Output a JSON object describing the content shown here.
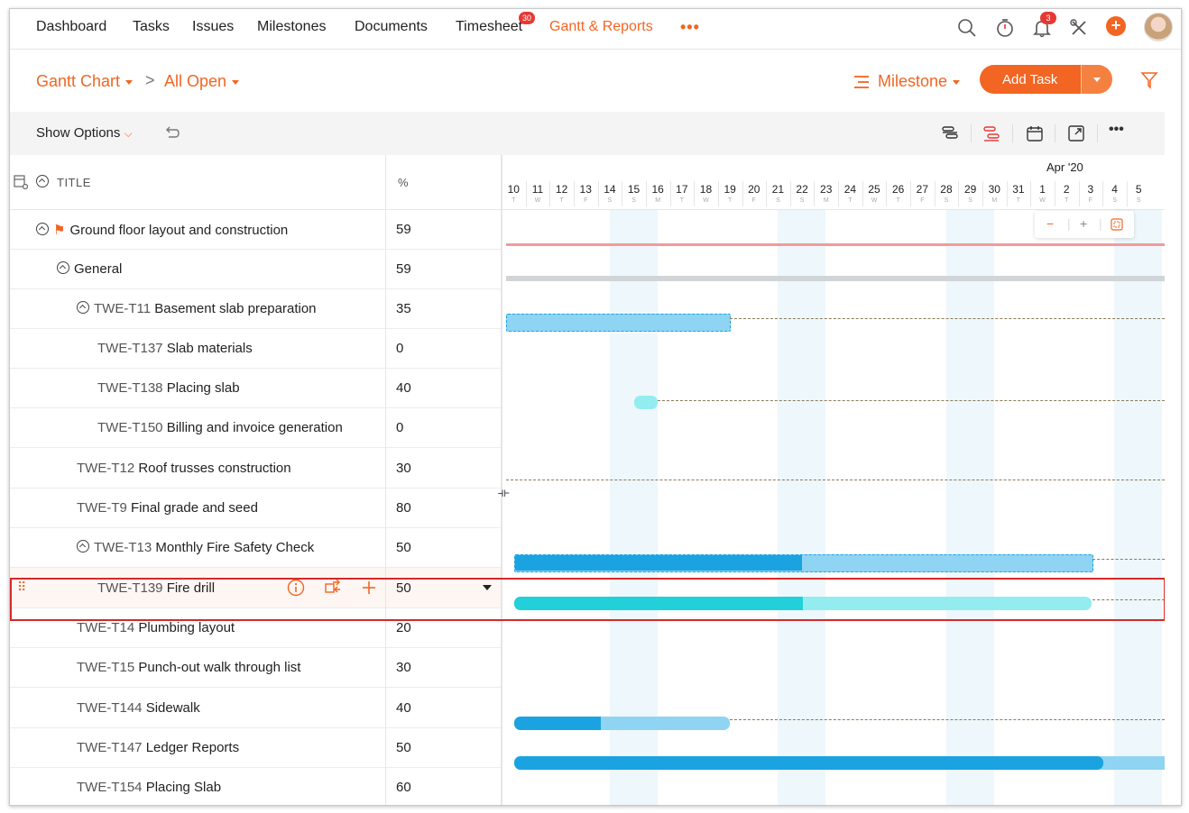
{
  "nav": {
    "items": [
      "Dashboard",
      "Tasks",
      "Issues",
      "Milestones",
      "Documents",
      "Timesheet",
      "Gantt & Reports"
    ],
    "timesheet_badge": "30",
    "notifications_badge": "3",
    "more": "•••"
  },
  "breadcrumb": {
    "view": "Gantt Chart",
    "separator": ">",
    "filter": "All Open"
  },
  "toolbar": {
    "group_by": "Milestone",
    "add_task": "Add Task",
    "show_options": "Show Options"
  },
  "table": {
    "col_title": "TITLE",
    "col_percent": "%",
    "rows": [
      {
        "key": "",
        "title": "Ground floor layout and construction",
        "pct": "59"
      },
      {
        "key": "",
        "title": "General",
        "pct": "59"
      },
      {
        "key": "TWE-T11",
        "title": "Basement slab preparation",
        "pct": "35"
      },
      {
        "key": "TWE-T137",
        "title": "Slab materials",
        "pct": "0"
      },
      {
        "key": "TWE-T138",
        "title": "Placing slab",
        "pct": "40"
      },
      {
        "key": "TWE-T150",
        "title": "Billing and invoice generation",
        "pct": "0"
      },
      {
        "key": "TWE-T12",
        "title": "Roof trusses construction",
        "pct": "30"
      },
      {
        "key": "TWE-T9",
        "title": "Final grade and seed",
        "pct": "80"
      },
      {
        "key": "TWE-T13",
        "title": "Monthly Fire Safety Check",
        "pct": "50"
      },
      {
        "key": "TWE-T139",
        "title": "Fire drill",
        "pct": "50"
      },
      {
        "key": "TWE-T14",
        "title": "Plumbing layout",
        "pct": "20"
      },
      {
        "key": "TWE-T15",
        "title": "Punch-out walk through list",
        "pct": "30"
      },
      {
        "key": "TWE-T144",
        "title": "Sidewalk",
        "pct": "40"
      },
      {
        "key": "TWE-T147",
        "title": "Ledger Reports",
        "pct": "50"
      },
      {
        "key": "TWE-T154",
        "title": "Placing Slab",
        "pct": "60"
      }
    ]
  },
  "timeline": {
    "month": "Apr '20",
    "days": [
      "10",
      "11",
      "12",
      "13",
      "14",
      "15",
      "16",
      "17",
      "18",
      "19",
      "20",
      "21",
      "22",
      "23",
      "24",
      "25",
      "26",
      "27",
      "28",
      "29",
      "30",
      "31",
      "1",
      "2",
      "3",
      "4",
      "5"
    ],
    "weekdays": [
      "T",
      "W",
      "T",
      "F",
      "S",
      "S",
      "M",
      "T",
      "W",
      "T",
      "F",
      "S",
      "S",
      "M",
      "T",
      "W",
      "T",
      "F",
      "S",
      "S",
      "M",
      "T",
      "W",
      "T",
      "F",
      "S",
      "S"
    ],
    "zoom_minus": "−",
    "zoom_plus": "+"
  },
  "colors": {
    "accent": "#f26522",
    "bar_dark": "#1aa3e0",
    "bar_light": "#8fd4f2",
    "teal_dark": "#21d0d8",
    "teal_light": "#93ecef",
    "milestone_line": "#f29a9a",
    "selection_border": "#d42a2a"
  }
}
